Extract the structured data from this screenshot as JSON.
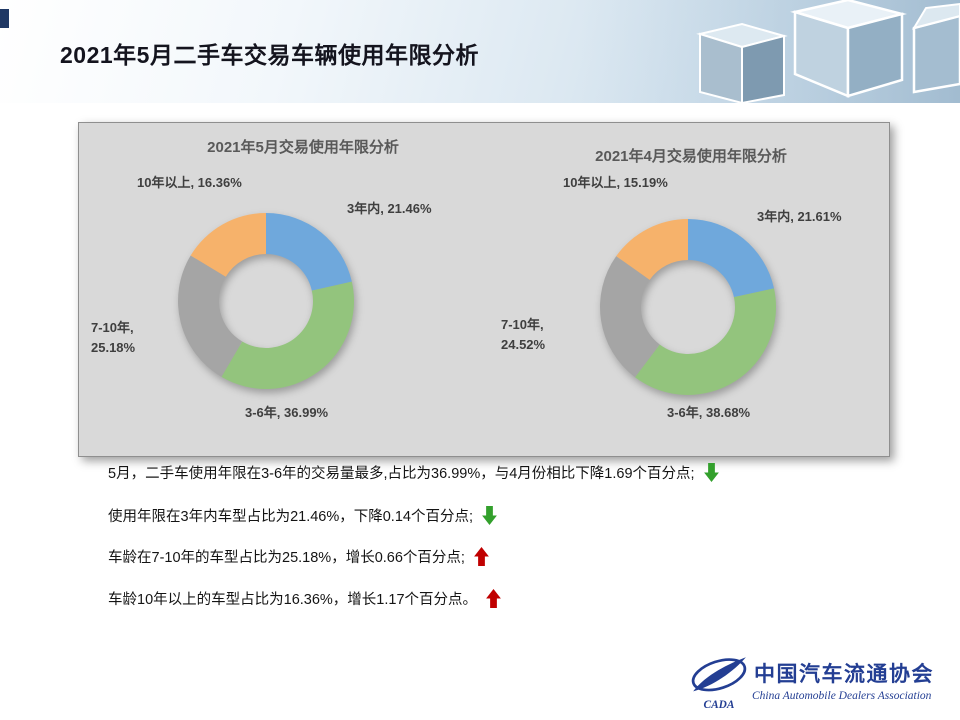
{
  "slide": {
    "title": "2021年5月二手车交易车辆使用年限分析"
  },
  "chart_data": [
    {
      "type": "pie",
      "subtype": "donut",
      "title": "2021年5月交易使用年限分析",
      "categories": [
        "3年内",
        "3-6年",
        "7-10年",
        "10年以上"
      ],
      "values": [
        21.46,
        36.99,
        25.18,
        16.36
      ],
      "unit": "%",
      "slice_labels": [
        "3年内, 21.46%",
        "3-6年, 36.99%",
        "7-10年, 25.18%",
        "10年以上, 16.36%"
      ],
      "colors": [
        "#6FA8DC",
        "#93C47D",
        "#A5A5A5",
        "#F6B26B"
      ],
      "start_angle_deg": 0,
      "direction": "clockwise",
      "legend": "none"
    },
    {
      "type": "pie",
      "subtype": "donut",
      "title": "2021年4月交易使用年限分析",
      "categories": [
        "3年内",
        "3-6年",
        "7-10年",
        "10年以上"
      ],
      "values": [
        21.61,
        38.68,
        24.52,
        15.19
      ],
      "unit": "%",
      "slice_labels": [
        "3年内, 21.61%",
        "3-6年, 38.68%",
        "7-10年, 24.52%",
        "10年以上, 15.19%"
      ],
      "colors": [
        "#6FA8DC",
        "#93C47D",
        "#A5A5A5",
        "#F6B26B"
      ],
      "start_angle_deg": 0,
      "direction": "clockwise",
      "legend": "none"
    }
  ],
  "notes": [
    {
      "text": "5月，二手车使用年限在3-6年的交易量最多,占比为36.99%，与4月份相比下降1.69个百分点;",
      "trend": "down"
    },
    {
      "text": "使用年限在3年内车型占比为21.46%，下降0.14个百分点;",
      "trend": "down"
    },
    {
      "text": "车龄在7-10年的车型占比为25.18%，增长0.66个百分点;",
      "trend": "up"
    },
    {
      "text": "车龄10年以上的车型占比为16.36%，增长1.17个百分点。",
      "trend": "up"
    }
  ],
  "logo": {
    "abbr": "CADA",
    "name_cn": "中国汽车流通协会",
    "name_en": "China Automobile Dealers Association"
  },
  "colors": {
    "arrow_up": "#C00000",
    "arrow_down": "#33A02C",
    "logo_blue": "#233E93",
    "panel_bg": "#D9D9D9"
  }
}
